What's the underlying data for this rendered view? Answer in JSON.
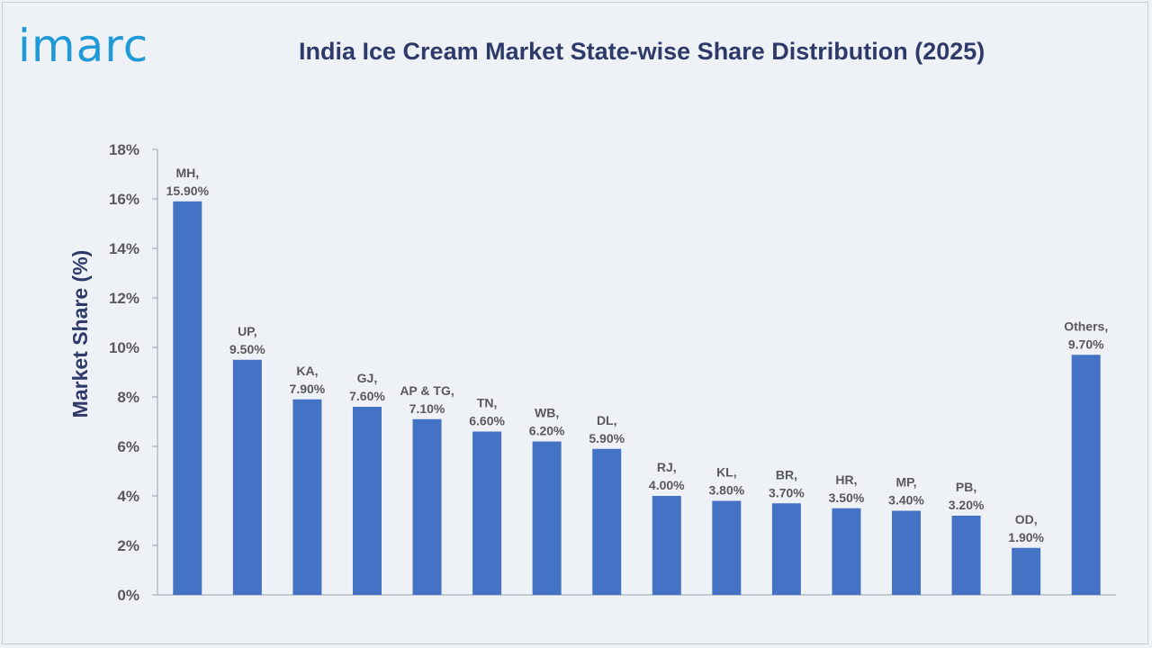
{
  "brand": {
    "logo_text": "imarc"
  },
  "chart_data": {
    "type": "bar",
    "title": "India Ice Cream Market State-wise Share Distribution (2025)",
    "xlabel": "",
    "ylabel": "Market Share (%)",
    "ylim": [
      0,
      18
    ],
    "yticks": [
      0,
      2,
      4,
      6,
      8,
      10,
      12,
      14,
      16,
      18
    ],
    "ytick_labels": [
      "0%",
      "2%",
      "4%",
      "6%",
      "8%",
      "10%",
      "12%",
      "14%",
      "16%",
      "18%"
    ],
    "categories": [
      "MH",
      "UP",
      "KA",
      "GJ",
      "AP & TG",
      "TN",
      "WB",
      "DL",
      "RJ",
      "KL",
      "BR",
      "HR",
      "MP",
      "PB",
      "OD",
      "Others"
    ],
    "values": [
      15.9,
      9.5,
      7.9,
      7.6,
      7.1,
      6.6,
      6.2,
      5.9,
      4.0,
      3.8,
      3.7,
      3.5,
      3.4,
      3.2,
      1.9,
      9.7
    ],
    "data_labels": [
      [
        "MH,",
        "15.90%"
      ],
      [
        "UP,",
        "9.50%"
      ],
      [
        "KA,",
        "7.90%"
      ],
      [
        "GJ,",
        "7.60%"
      ],
      [
        "AP & TG,",
        "7.10%"
      ],
      [
        "TN,",
        "6.60%"
      ],
      [
        "WB,",
        "6.20%"
      ],
      [
        "DL,",
        "5.90%"
      ],
      [
        "RJ,",
        "4.00%"
      ],
      [
        "KL,",
        "3.80%"
      ],
      [
        "BR,",
        "3.70%"
      ],
      [
        "HR,",
        "3.50%"
      ],
      [
        "MP,",
        "3.40%"
      ],
      [
        "PB,",
        "3.20%"
      ],
      [
        "OD,",
        "1.90%"
      ],
      [
        "Others,",
        "9.70%"
      ]
    ],
    "grid": false,
    "legend": "none",
    "bar_color": "#4472c4"
  }
}
